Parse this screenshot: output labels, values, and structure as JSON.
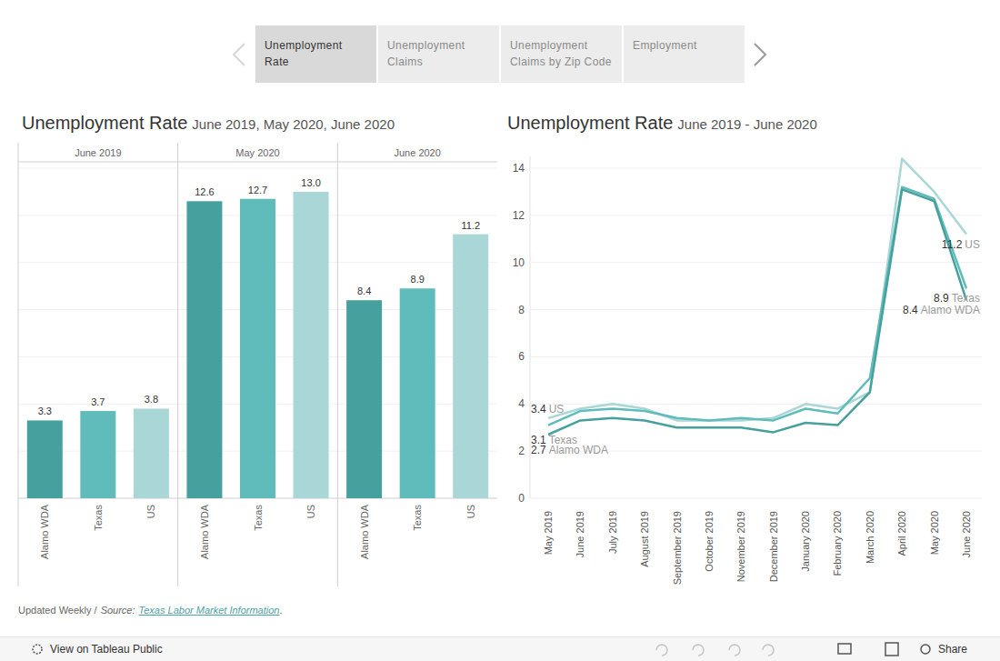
{
  "tabs": [
    [
      "Unemployment",
      "Rate"
    ],
    [
      "Unemployment",
      "Claims"
    ],
    [
      "Unemployment",
      "Claims by Zip Code"
    ],
    [
      "Employment"
    ]
  ],
  "chart_data": [
    {
      "type": "bar",
      "title": "Unemployment Rate",
      "subtitle": "June 2019, May 2020, June 2020",
      "categories": [
        "June 2019",
        "May 2020",
        "June 2020"
      ],
      "series": [
        {
          "name": "Alamo WDA",
          "color": "#46a19e",
          "values": [
            3.3,
            12.6,
            8.4
          ],
          "value_labels": [
            "3.3",
            "12.6",
            "8.4"
          ]
        },
        {
          "name": "Texas",
          "color": "#5fbcbb",
          "values": [
            3.7,
            12.7,
            8.9
          ],
          "value_labels": [
            "3.7",
            "12.7",
            "8.9"
          ]
        },
        {
          "name": "US",
          "color": "#a9d6d6",
          "values": [
            3.8,
            13.0,
            11.2
          ],
          "value_labels": [
            "3.8",
            "13.0",
            "11.2"
          ]
        }
      ],
      "ylim": [
        0,
        14
      ],
      "yticks": [
        0,
        2,
        4,
        6,
        8,
        10,
        12,
        14
      ],
      "grid": true,
      "data_labels": true,
      "tick_labels": "x"
    },
    {
      "type": "line",
      "title": "Unemployment Rate",
      "subtitle": "June 2019 - June 2020",
      "categories": [
        "May 2019",
        "June 2019",
        "July 2019",
        "August 2019",
        "September 2019",
        "October 2019",
        "November 2019",
        "December 2019",
        "January 2020",
        "February 2020",
        "March 2020",
        "April 2020",
        "May 2020",
        "June 2020"
      ],
      "series": [
        {
          "name": "Alamo WDA",
          "color": "#46a19e",
          "values": [
            2.7,
            3.3,
            3.4,
            3.3,
            3.0,
            3.0,
            3.0,
            2.8,
            3.2,
            3.1,
            4.5,
            13.1,
            12.6,
            8.4
          ]
        },
        {
          "name": "Texas",
          "color": "#5fbcbb",
          "values": [
            3.1,
            3.7,
            3.8,
            3.7,
            3.4,
            3.3,
            3.4,
            3.3,
            3.8,
            3.6,
            5.1,
            13.2,
            12.7,
            8.9
          ]
        },
        {
          "name": "US",
          "color": "#a9d6d6",
          "values": [
            3.4,
            3.8,
            4.0,
            3.8,
            3.3,
            3.3,
            3.3,
            3.4,
            4.0,
            3.8,
            4.5,
            14.4,
            13.0,
            11.2
          ]
        }
      ],
      "ylim": [
        0,
        14.5
      ],
      "yticks": [
        0,
        2,
        4,
        6,
        8,
        10,
        12,
        14
      ],
      "grid": true
    }
  ],
  "footer": {
    "updated": "Updated Weekly /",
    "source_label": "Source:",
    "source_link": "Texas Labor Market Information",
    "end": "."
  },
  "toolbar": {
    "view": "View on Tableau Public",
    "share": "Share"
  }
}
